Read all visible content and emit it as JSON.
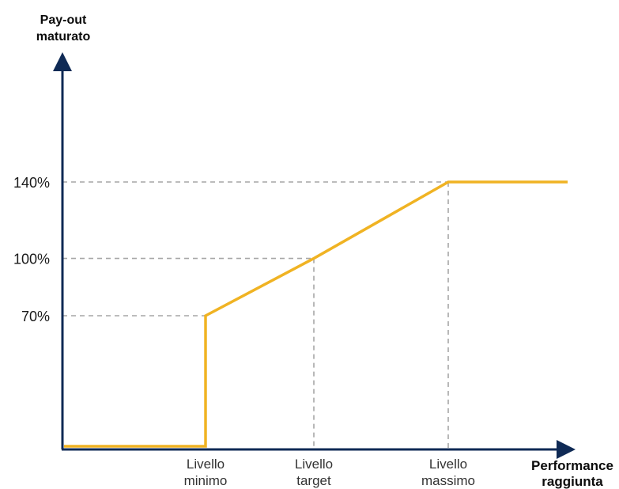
{
  "chart_data": {
    "type": "line",
    "title": "",
    "ylabel": [
      "Pay-out",
      "maturato"
    ],
    "xlabel": [
      "Performance",
      "raggiunta"
    ],
    "y_ticks": [
      {
        "value": 140,
        "label": "140%"
      },
      {
        "value": 100,
        "label": "100%"
      },
      {
        "value": 70,
        "label": "70%"
      }
    ],
    "x_ticks": [
      {
        "key": "min",
        "label": [
          "Livello",
          "minimo"
        ]
      },
      {
        "key": "target",
        "label": [
          "Livello",
          "target"
        ]
      },
      {
        "key": "max",
        "label": [
          "Livello",
          "massimo"
        ]
      }
    ],
    "series": [
      {
        "color": "#f0b323",
        "points": [
          {
            "x": "start",
            "y": 0
          },
          {
            "x": "min",
            "y": 0
          },
          {
            "x": "min",
            "y": 70
          },
          {
            "x": "target",
            "y": 100
          },
          {
            "x": "max",
            "y": 140
          },
          {
            "x": "end",
            "y": 140
          }
        ]
      }
    ],
    "grid": "dashed guides to tick levels",
    "colors": {
      "axis": "#0f2a55",
      "line": "#f0b323",
      "guide": "#a6a6a6"
    }
  }
}
